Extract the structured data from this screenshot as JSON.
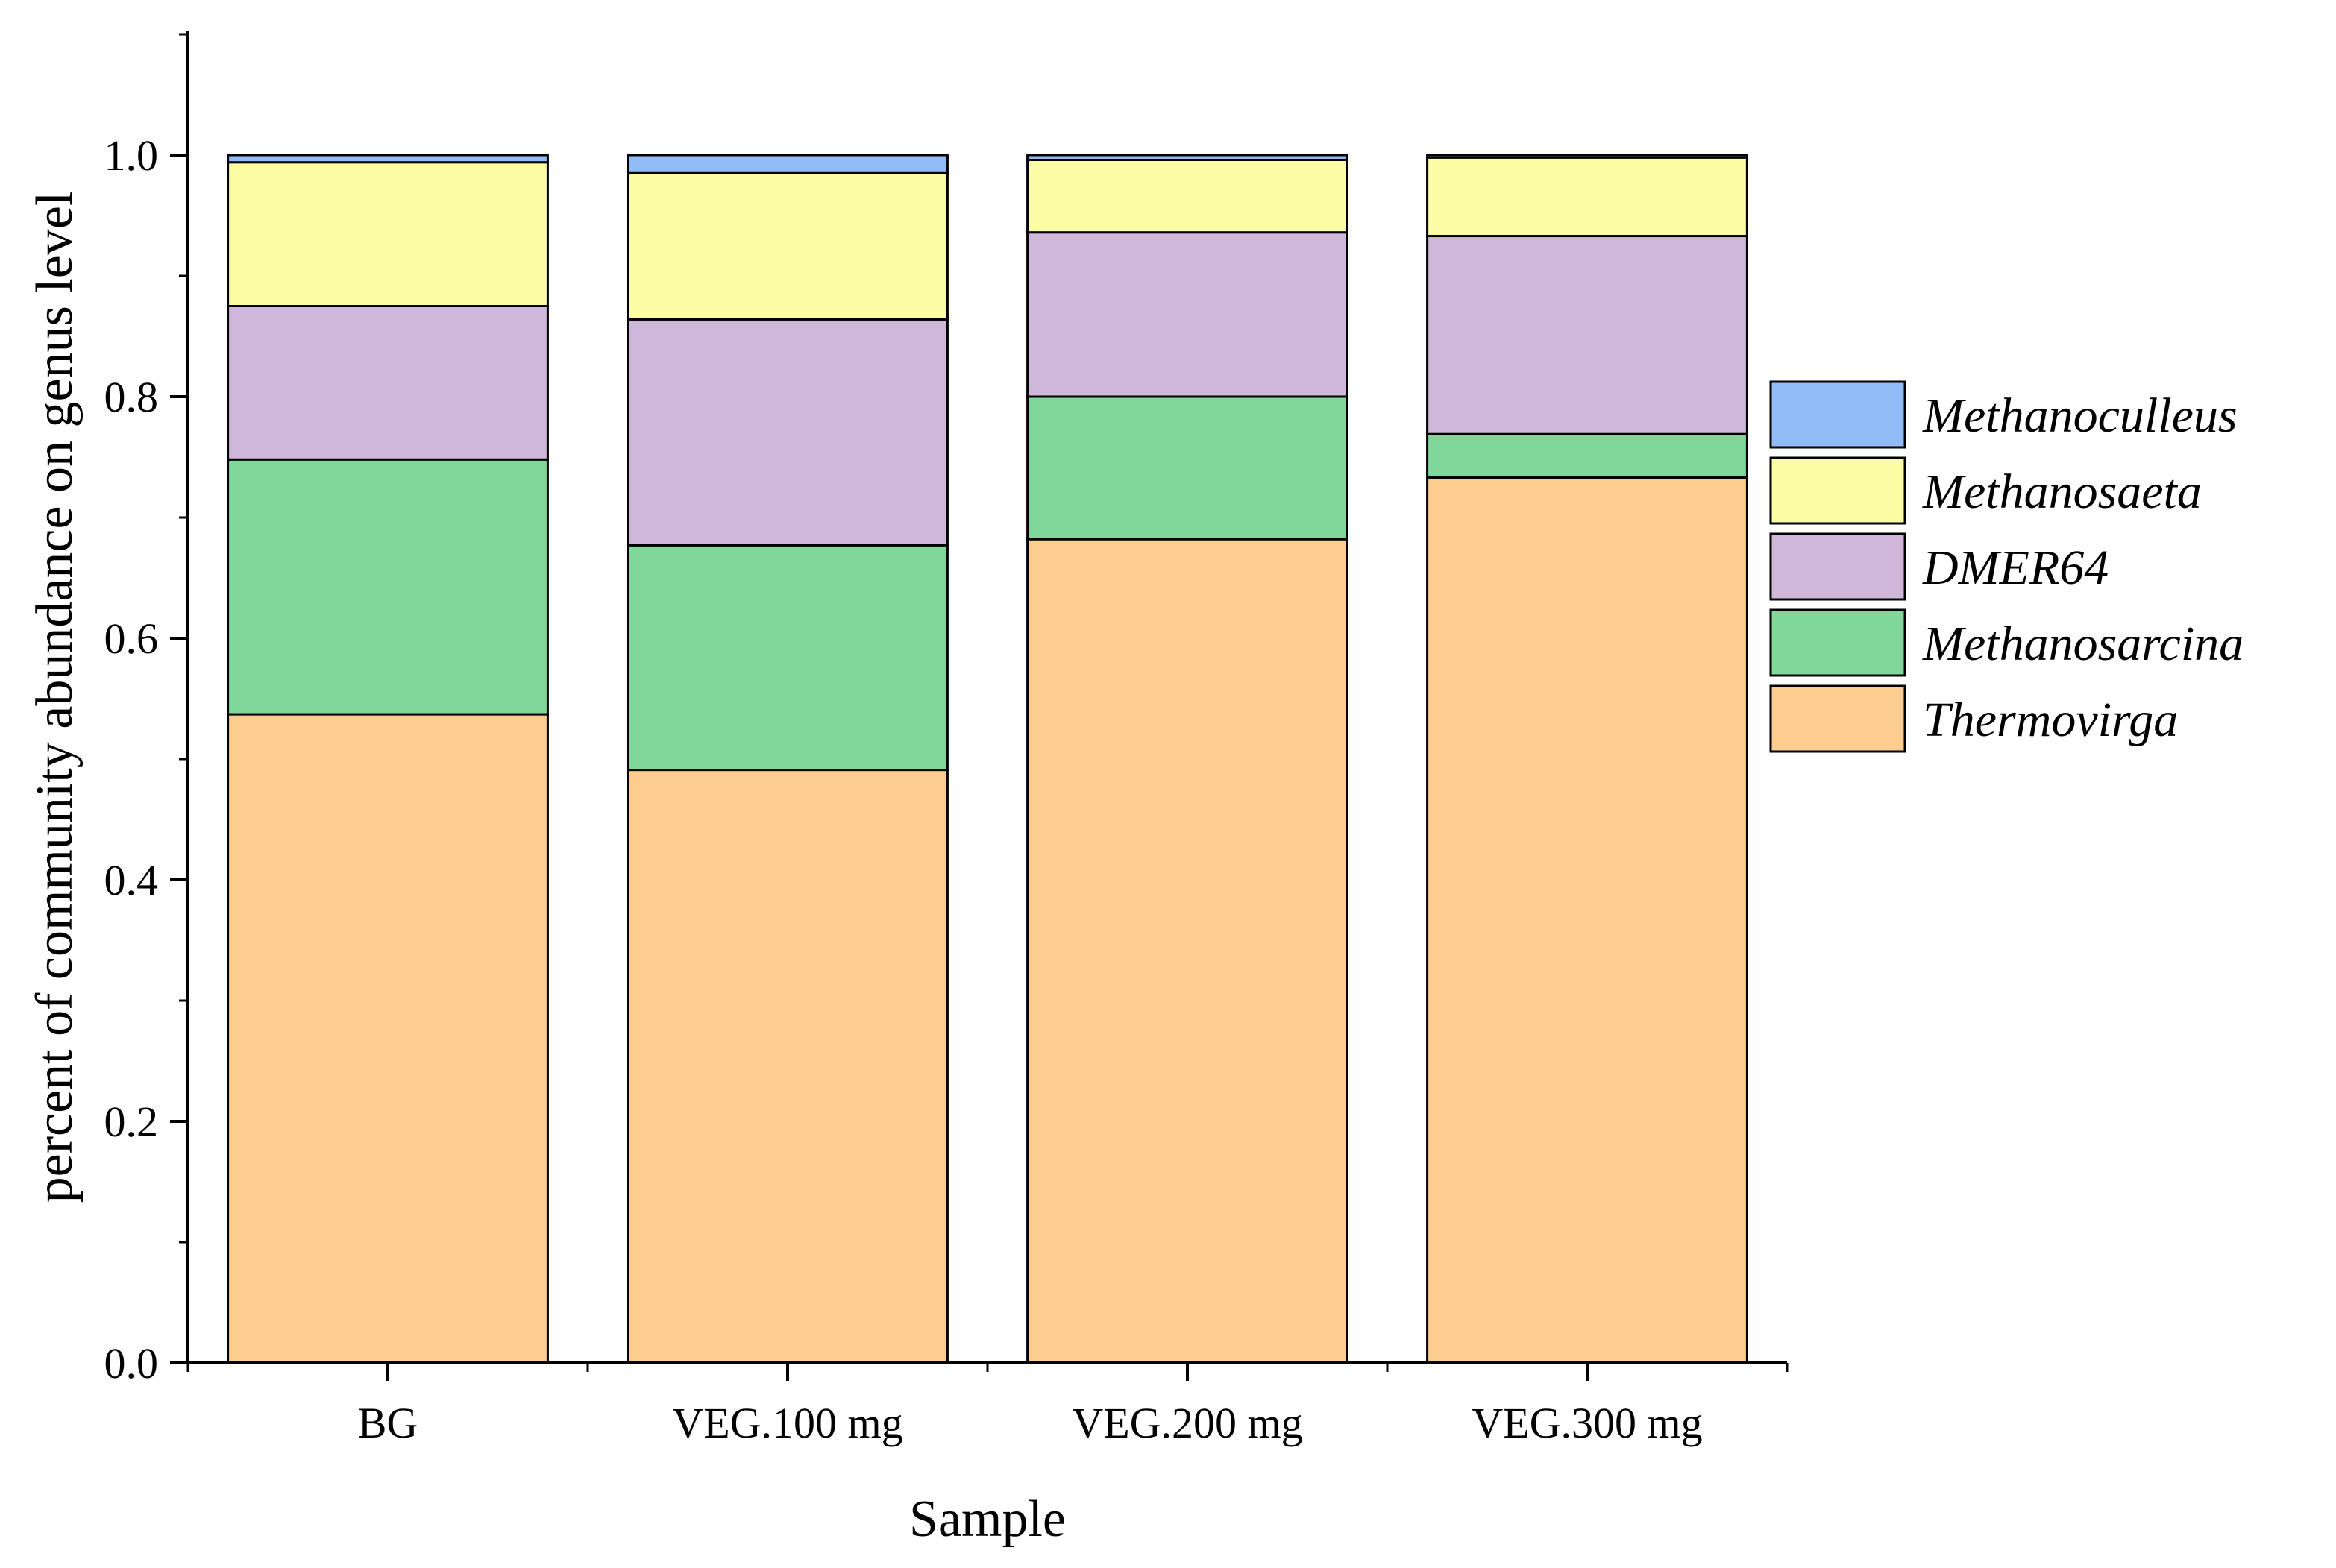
{
  "chart_data": {
    "type": "bar",
    "stacked": true,
    "categories": [
      "BG",
      "VEG.100 mg",
      "VEG.200 mg",
      "VEG.300 mg"
    ],
    "xlabel": "Sample",
    "ylabel": "percent of community abundance on genus level",
    "ylim": [
      0,
      1.1
    ],
    "yticks": [
      "0.0",
      "0.2",
      "0.4",
      "0.6",
      "0.8",
      "1.0"
    ],
    "ytick_values": [
      0,
      0.2,
      0.4,
      0.6,
      0.8,
      1.0
    ],
    "grid": false,
    "legend_position": "right",
    "series": [
      {
        "name": "Thermovirga",
        "color": "#FDCD8F",
        "values": [
          0.537,
          0.491,
          0.682,
          0.733
        ]
      },
      {
        "name": "Methanosarcina",
        "color": "#7FD899",
        "values": [
          0.211,
          0.186,
          0.118,
          0.036
        ]
      },
      {
        "name": "DMER64",
        "color": "#CFB7DA",
        "values": [
          0.127,
          0.187,
          0.136,
          0.164
        ]
      },
      {
        "name": "Methanosaeta",
        "color": "#FCFCA5",
        "values": [
          0.119,
          0.121,
          0.06,
          0.065
        ]
      },
      {
        "name": "Methanoculleus",
        "color": "#8FBCF6",
        "values": [
          0.006,
          0.015,
          0.004,
          0.002
        ]
      }
    ],
    "legend_order": [
      "Methanoculleus",
      "Methanosaeta",
      "DMER64",
      "Methanosarcina",
      "Thermovirga"
    ]
  }
}
